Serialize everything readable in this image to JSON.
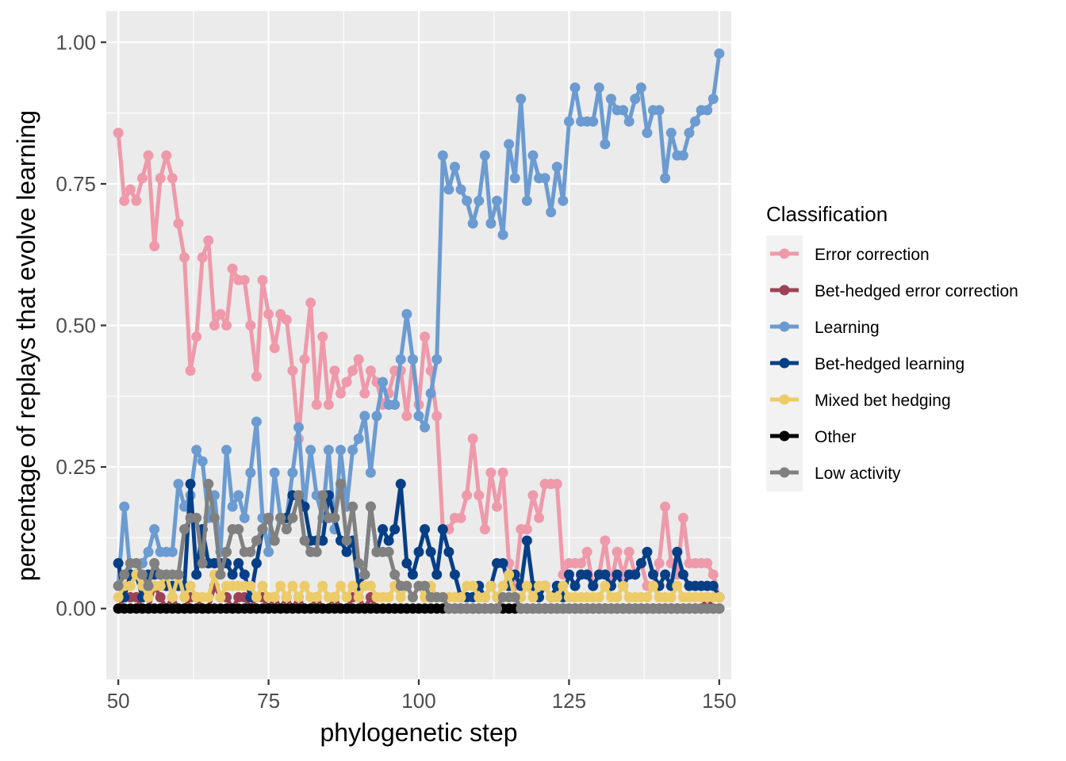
{
  "chart_data": {
    "type": "line",
    "title": "",
    "xlabel": "phylogenetic step",
    "ylabel": "percentage of replays that evolve learning",
    "xlim": [
      48,
      152
    ],
    "ylim": [
      -0.125,
      1.055
    ],
    "x_ticks": [
      50,
      75,
      100,
      125,
      150
    ],
    "x_tick_labels": [
      "50",
      "75",
      "100",
      "125",
      "150"
    ],
    "y_ticks": [
      0,
      0.25,
      0.5,
      0.75,
      1
    ],
    "y_tick_labels": [
      "0.00",
      "0.25",
      "0.50",
      "0.75",
      "1.00"
    ],
    "grid": true,
    "legend": {
      "title": "Classification",
      "position": "right"
    },
    "x_start": 50,
    "series": [
      {
        "name": "Error correction",
        "color": "#ee9aab",
        "values": [
          0.84,
          0.72,
          0.74,
          0.72,
          0.76,
          0.8,
          0.64,
          0.76,
          0.8,
          0.76,
          0.68,
          0.62,
          0.42,
          0.48,
          0.62,
          0.65,
          0.5,
          0.52,
          0.5,
          0.6,
          0.58,
          0.58,
          0.5,
          0.41,
          0.58,
          0.52,
          0.46,
          0.52,
          0.51,
          0.42,
          0.3,
          0.44,
          0.54,
          0.36,
          0.48,
          0.36,
          0.42,
          0.38,
          0.4,
          0.42,
          0.44,
          0.38,
          0.42,
          0.4,
          0.36,
          0.38,
          0.42,
          0.42,
          0.34,
          0.44,
          0.36,
          0.48,
          0.42,
          0.34,
          0.14,
          0.14,
          0.16,
          0.16,
          0.2,
          0.3,
          0.2,
          0.14,
          0.24,
          0.18,
          0.24,
          0.08,
          0.04,
          0.14,
          0.14,
          0.2,
          0.16,
          0.22,
          0.22,
          0.22,
          0.06,
          0.08,
          0.08,
          0.08,
          0.1,
          0.04,
          0.06,
          0.12,
          0.04,
          0.1,
          0.06,
          0.1,
          0.06,
          0.08,
          0.04,
          0.04,
          0.08,
          0.18,
          0.08,
          0.06,
          0.16,
          0.08,
          0.08,
          0.08,
          0.08,
          0.06,
          0.02
        ]
      },
      {
        "name": "Bet-hedged error correction",
        "color": "#9c4257",
        "values": [
          0,
          0.02,
          0.02,
          0.02,
          0,
          0,
          0.04,
          0.02,
          0,
          0.02,
          0,
          0,
          0.02,
          0.02,
          0,
          0,
          0.04,
          0.02,
          0.02,
          0,
          0.02,
          0.02,
          0,
          0.02,
          0.02,
          0,
          0.02,
          0,
          0.02,
          0,
          0.02,
          0,
          0,
          0.02,
          0,
          0,
          0.02,
          0,
          0,
          0.02,
          0.02,
          0,
          0.02,
          0,
          0,
          0,
          0,
          0,
          0,
          0,
          0,
          0,
          0,
          0,
          0,
          0,
          0,
          0,
          0,
          0,
          0,
          0,
          0,
          0,
          0,
          0,
          0,
          0,
          0,
          0,
          0,
          0,
          0,
          0,
          0,
          0,
          0,
          0,
          0,
          0,
          0,
          0,
          0,
          0,
          0,
          0,
          0,
          0,
          0,
          0,
          0,
          0,
          0,
          0,
          0,
          0,
          0,
          0,
          0.02,
          0,
          0
        ]
      },
      {
        "name": "Learning",
        "color": "#6b9bd0",
        "values": [
          0.04,
          0.18,
          0.06,
          0.06,
          0.08,
          0.1,
          0.14,
          0.1,
          0.1,
          0.1,
          0.22,
          0.18,
          0.2,
          0.28,
          0.26,
          0.16,
          0.2,
          0.1,
          0.28,
          0.18,
          0.2,
          0.16,
          0.24,
          0.33,
          0.16,
          0.1,
          0.24,
          0.16,
          0.16,
          0.24,
          0.32,
          0.18,
          0.28,
          0.2,
          0.16,
          0.28,
          0.14,
          0.28,
          0.18,
          0.28,
          0.3,
          0.34,
          0.24,
          0.34,
          0.4,
          0.36,
          0.36,
          0.44,
          0.52,
          0.44,
          0.34,
          0.32,
          0.38,
          0.44,
          0.8,
          0.74,
          0.78,
          0.74,
          0.72,
          0.68,
          0.72,
          0.8,
          0.68,
          0.72,
          0.66,
          0.82,
          0.76,
          0.9,
          0.72,
          0.8,
          0.76,
          0.76,
          0.7,
          0.78,
          0.72,
          0.86,
          0.92,
          0.86,
          0.86,
          0.86,
          0.92,
          0.82,
          0.9,
          0.88,
          0.88,
          0.86,
          0.9,
          0.92,
          0.84,
          0.88,
          0.88,
          0.76,
          0.84,
          0.8,
          0.8,
          0.84,
          0.86,
          0.88,
          0.88,
          0.9,
          0.98
        ]
      },
      {
        "name": "Bet-hedged learning",
        "color": "#063f86",
        "values": [
          0.08,
          0.02,
          0.06,
          0.06,
          0.02,
          0.06,
          0.06,
          0.06,
          0.04,
          0.04,
          0.04,
          0.04,
          0.22,
          0.06,
          0.14,
          0.08,
          0.08,
          0.08,
          0.08,
          0.06,
          0.08,
          0.06,
          0.02,
          0.08,
          0.14,
          0.16,
          0.12,
          0.16,
          0.16,
          0.2,
          0.2,
          0.18,
          0.12,
          0.12,
          0.12,
          0.2,
          0.16,
          0.12,
          0.1,
          0.12,
          0.04,
          0.06,
          0.18,
          0.1,
          0.14,
          0.12,
          0.14,
          0.22,
          0.08,
          0.06,
          0.1,
          0.14,
          0.1,
          0.06,
          0.14,
          0.1,
          0.06,
          0.02,
          0.02,
          0.02,
          0.04,
          0.02,
          0.04,
          0.08,
          0.08,
          0.04,
          0.06,
          0.04,
          0.12,
          0.04,
          0.02,
          0.04,
          0.02,
          0.04,
          0.02,
          0.06,
          0.04,
          0.06,
          0.06,
          0.04,
          0.06,
          0.06,
          0.04,
          0.06,
          0.04,
          0.06,
          0.06,
          0.08,
          0.1,
          0.06,
          0.04,
          0.06,
          0.04,
          0.1,
          0.06,
          0.04,
          0.04,
          0.04,
          0.04,
          0.04,
          0.02
        ]
      },
      {
        "name": "Mixed bet hedging",
        "color": "#eccb69",
        "values": [
          0.02,
          0.04,
          0.04,
          0.06,
          0.04,
          0.02,
          0.04,
          0.04,
          0.06,
          0.02,
          0.06,
          0.02,
          0.04,
          0.02,
          0.02,
          0.02,
          0.06,
          0.02,
          0.04,
          0.04,
          0.04,
          0.04,
          0.04,
          0.02,
          0.04,
          0.02,
          0.02,
          0.04,
          0.02,
          0.04,
          0.02,
          0.04,
          0.02,
          0.02,
          0.04,
          0.02,
          0.02,
          0.04,
          0.02,
          0.04,
          0.02,
          0.04,
          0.04,
          0.02,
          0.02,
          0.02,
          0.04,
          0.02,
          0.04,
          0.02,
          0.04,
          0.02,
          0.04,
          0.02,
          0.02,
          0.02,
          0.02,
          0.02,
          0.04,
          0.04,
          0.02,
          0.02,
          0.04,
          0.02,
          0.04,
          0.06,
          0.02,
          0.02,
          0.04,
          0.02,
          0.04,
          0.04,
          0.02,
          0.02,
          0.04,
          0.02,
          0.02,
          0.02,
          0.02,
          0.02,
          0.02,
          0.04,
          0.02,
          0.02,
          0.04,
          0.02,
          0.02,
          0.02,
          0.02,
          0.04,
          0.02,
          0.02,
          0.02,
          0.04,
          0.02,
          0.02,
          0.02,
          0.02,
          0.02,
          0.02,
          0.02
        ]
      },
      {
        "name": "Other",
        "color": "#000000",
        "values": [
          0,
          0,
          0,
          0,
          0,
          0,
          0,
          0,
          0,
          0,
          0,
          0,
          0,
          0,
          0,
          0,
          0,
          0,
          0,
          0,
          0,
          0,
          0,
          0,
          0,
          0,
          0,
          0,
          0,
          0,
          0,
          0,
          0,
          0,
          0,
          0,
          0,
          0,
          0,
          0,
          0,
          0,
          0,
          0,
          0,
          0,
          0,
          0,
          0,
          0,
          0,
          0,
          0,
          0,
          0,
          0,
          0,
          0,
          0,
          0,
          0,
          0,
          0,
          0,
          0,
          0,
          0,
          0,
          0,
          0,
          0,
          0,
          0,
          0,
          0,
          0,
          0,
          0,
          0,
          0,
          0,
          0,
          0,
          0,
          0,
          0,
          0,
          0,
          0,
          0,
          0,
          0,
          0,
          0,
          0,
          0,
          0,
          0,
          0,
          0,
          0
        ]
      },
      {
        "name": "Low activity",
        "color": "#808080",
        "values": [
          0.04,
          0.06,
          0.08,
          0.08,
          0.06,
          0.04,
          0.08,
          0.06,
          0.06,
          0.06,
          0.06,
          0.14,
          0.16,
          0.16,
          0.08,
          0.22,
          0.16,
          0.06,
          0.1,
          0.14,
          0.14,
          0.1,
          0.1,
          0.12,
          0.14,
          0.16,
          0.12,
          0.16,
          0.14,
          0.16,
          0.2,
          0.12,
          0.1,
          0.1,
          0.2,
          0.16,
          0.16,
          0.22,
          0.12,
          0.18,
          0.08,
          0.06,
          0.18,
          0.1,
          0.1,
          0.1,
          0.06,
          0.04,
          0.04,
          0.02,
          0.04,
          0.04,
          0.02,
          0.02,
          0.02,
          0,
          0,
          0,
          0,
          0,
          0,
          0,
          0,
          0,
          0.02,
          0.02,
          0.02,
          0,
          0,
          0,
          0,
          0,
          0,
          0,
          0,
          0,
          0,
          0,
          0,
          0,
          0,
          0,
          0,
          0,
          0,
          0,
          0,
          0,
          0,
          0,
          0,
          0,
          0,
          0,
          0,
          0,
          0,
          0,
          0,
          0,
          0
        ]
      }
    ]
  }
}
